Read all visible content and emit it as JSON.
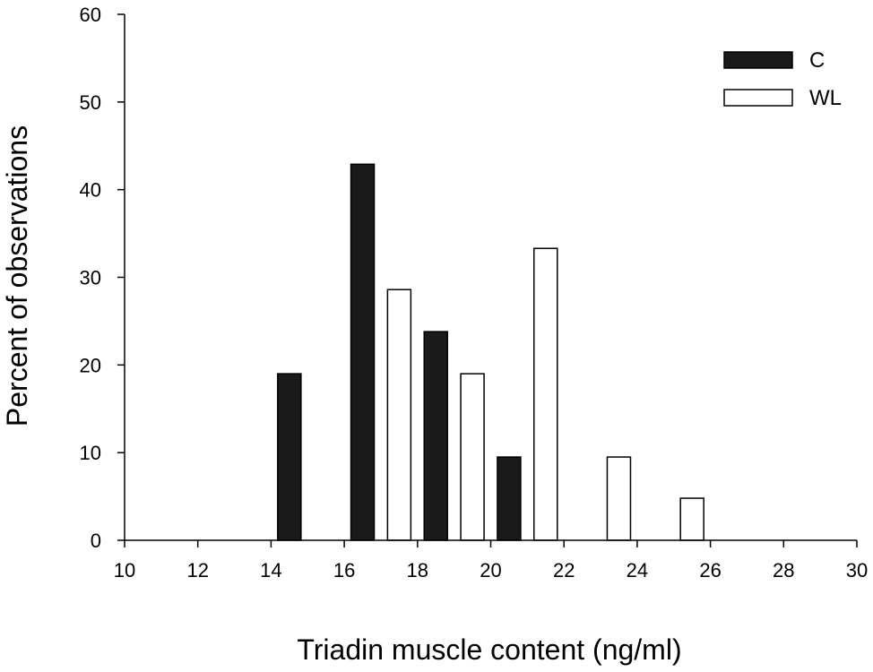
{
  "chart_data": {
    "type": "bar",
    "xlabel": "Triadin muscle content (ng/ml)",
    "ylabel": "Percent of observations",
    "xlim": [
      10,
      30
    ],
    "ylim": [
      0,
      60
    ],
    "xticks": [
      "10",
      "12",
      "14",
      "16",
      "18",
      "20",
      "22",
      "24",
      "26",
      "28",
      "30"
    ],
    "yticks": [
      "0",
      "10",
      "20",
      "30",
      "40",
      "50",
      "60"
    ],
    "grid": false,
    "legend_position": "top-right",
    "series": [
      {
        "name": "C",
        "color": "#1a1a1a",
        "points": [
          {
            "x": 14.5,
            "y": 19
          },
          {
            "x": 16.5,
            "y": 42.9
          },
          {
            "x": 18.5,
            "y": 23.8
          },
          {
            "x": 20.5,
            "y": 9.5
          }
        ]
      },
      {
        "name": "WL",
        "color": "#ffffff",
        "points": [
          {
            "x": 17.5,
            "y": 28.6
          },
          {
            "x": 19.5,
            "y": 19
          },
          {
            "x": 21.5,
            "y": 33.3
          },
          {
            "x": 23.5,
            "y": 9.5
          },
          {
            "x": 25.5,
            "y": 4.8
          }
        ]
      }
    ]
  }
}
